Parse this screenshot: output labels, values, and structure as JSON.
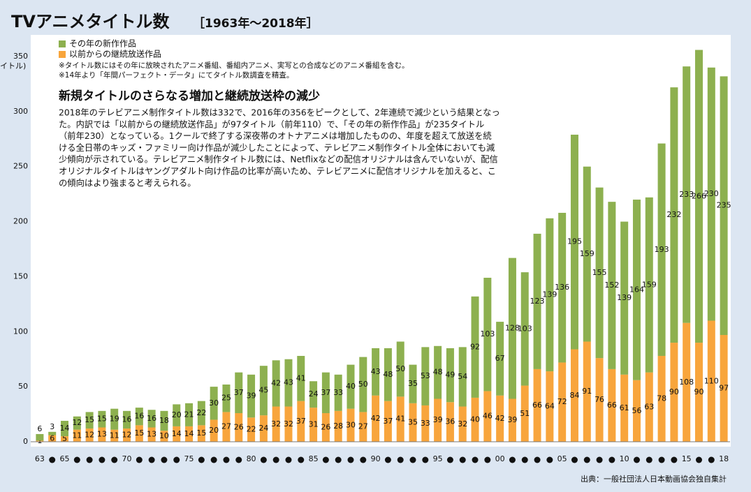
{
  "chart_data": {
    "type": "bar",
    "stacked": true,
    "title": "TVアニメタイトル数",
    "subtitle": "［1963年～2018年］",
    "y_label": "イトル)",
    "notes": [
      "※タイトル数にはその年に放映されたアニメ番組、番組内アニメ、実写との合成などのアニメ番組を含む。",
      "※14年より「年間パーフェクト・データ」にてタイトル数調査を精査。"
    ],
    "annotation": {
      "title": "新規タイトルのさらなる増加と継続放送枠の減少",
      "lines": [
        "2018年のテレビアニメ制作タイトル数は332で、2016年の356をピークとして、2年連続で減少という結果となっ",
        "た。内訳では「以前からの継続放送作品」が97タイトル（前年110）で、「その年の新作作品」が235タイトル",
        "（前年230）となっている。1クールで終了する深夜帯のオトナアニメは増加したものの、年度を超えて放送を続",
        "ける全日帯のキッズ・ファミリー向け作品が減少したことによって、テレビアニメ制作タイトル全体においても減",
        "少傾向が示されている。テレビアニメ制作タイトル数には、Netflixなどの配信オリジナルは含んでいないが、配信",
        "オリジナルタイトルはヤングアダルト向け作品の比率が高いため、テレビアニメに配信オリジナルを加えると、こ",
        "の傾向はより強まると考えられる。"
      ]
    },
    "source": "出典：一般社団法人日本動画協会独自集計",
    "categories": [
      "63",
      null,
      "65",
      null,
      null,
      null,
      null,
      "70",
      null,
      null,
      null,
      null,
      "75",
      null,
      null,
      null,
      null,
      "80",
      null,
      null,
      null,
      null,
      "85",
      null,
      null,
      null,
      null,
      "90",
      null,
      null,
      null,
      null,
      "95",
      null,
      null,
      null,
      null,
      "00",
      null,
      null,
      null,
      null,
      "05",
      null,
      null,
      null,
      null,
      "10",
      null,
      null,
      null,
      null,
      "15",
      null,
      null,
      "18"
    ],
    "series": [
      {
        "name": "その年の新作作品",
        "color": "#8db04f",
        "values": [
          6,
          3,
          14,
          12,
          15,
          15,
          19,
          16,
          16,
          16,
          18,
          20,
          21,
          22,
          30,
          25,
          37,
          39,
          45,
          42,
          43,
          41,
          24,
          37,
          33,
          40,
          50,
          43,
          48,
          50,
          35,
          53,
          48,
          49,
          54,
          92,
          103,
          67,
          128,
          103,
          123,
          139,
          136,
          195,
          159,
          155,
          152,
          139,
          164,
          159,
          193,
          232,
          233,
          266,
          230,
          235
        ]
      },
      {
        "name": "以前からの継続放送作品",
        "color": "#f8a53c",
        "values": [
          1,
          6,
          5,
          11,
          12,
          13,
          11,
          12,
          15,
          13,
          10,
          14,
          14,
          15,
          20,
          27,
          26,
          22,
          24,
          32,
          32,
          37,
          31,
          26,
          28,
          30,
          27,
          42,
          37,
          41,
          35,
          33,
          39,
          36,
          32,
          40,
          46,
          42,
          39,
          51,
          66,
          64,
          72,
          84,
          91,
          76,
          66,
          61,
          56,
          63,
          78,
          90,
          108,
          90,
          110,
          97
        ]
      }
    ],
    "ylim": [
      0,
      370
    ],
    "yticks": [
      0,
      50,
      100,
      150,
      200,
      250,
      300,
      350
    ],
    "grid": false
  }
}
